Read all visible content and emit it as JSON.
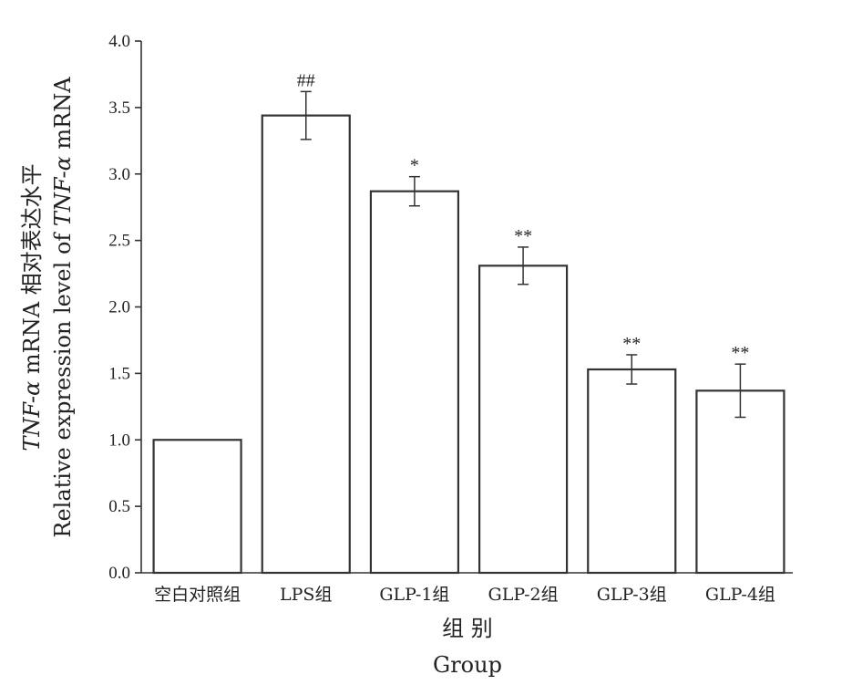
{
  "chart_data": {
    "type": "bar",
    "categories": [
      "空白对照组",
      "LPS组",
      "GLP-1组",
      "GLP-2组",
      "GLP-3组",
      "GLP-4组"
    ],
    "values": [
      1.0,
      3.44,
      2.87,
      2.31,
      1.53,
      1.37
    ],
    "errors": [
      0.0,
      0.18,
      0.11,
      0.14,
      0.11,
      0.2
    ],
    "annotations": [
      "",
      "##",
      "*",
      "**",
      "**",
      "**"
    ],
    "ylim": [
      0.0,
      4.0
    ],
    "yticks": [
      "0.0",
      "0.5",
      "1.0",
      "1.5",
      "2.0",
      "2.5",
      "3.0",
      "3.5",
      "4.0"
    ],
    "xlabel_cn": "组 别",
    "xlabel_en": "Group",
    "ylabel_line1": {
      "italic_prefix": "TNF-α",
      "rest": " mRNA 相对表达水平"
    },
    "ylabel_line2": {
      "prefix": "Relative expression level of ",
      "italic": "TNF-α",
      "suffix": " mRNA"
    },
    "bar_fill": "#ffffff",
    "bar_stroke": "#333333",
    "legend": "none",
    "grid": false
  }
}
